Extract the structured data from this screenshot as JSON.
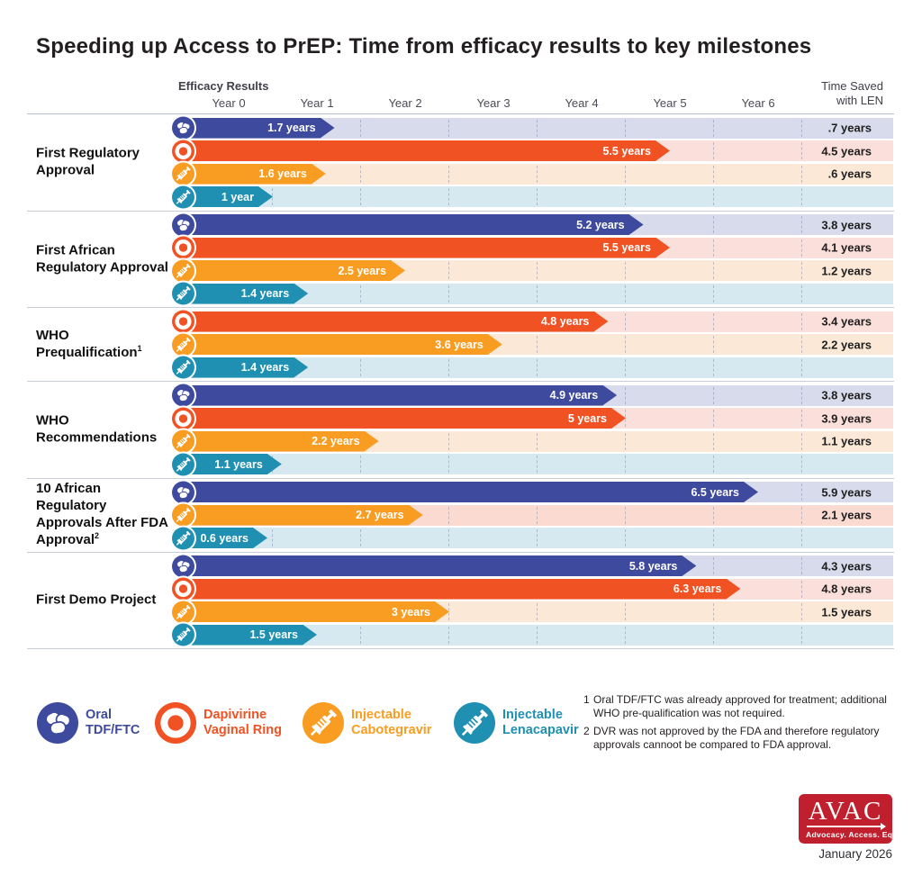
{
  "title": "Speeding up Access to PrEP: Time from efficacy results to key milestones",
  "axis": {
    "efficacy_label": "Efficacy Results",
    "years": [
      "Year 0",
      "Year 1",
      "Year 2",
      "Year 3",
      "Year 4",
      "Year 5",
      "Year 6"
    ],
    "time_saved_line1": "Time Saved",
    "time_saved_line2": "with LEN"
  },
  "drugs": {
    "tdf": {
      "name": "Oral TDF/FTC",
      "color": "#3E4A9D",
      "track": "#D8DBEC",
      "icon": "pills"
    },
    "dvr": {
      "name": "Dapivirine Vaginal Ring",
      "color": "#F05224",
      "track": "#FBDFDA",
      "icon": "ring"
    },
    "cab": {
      "name": "Injectable Cabotegravir",
      "color": "#F89D22",
      "track": "#FCE8D7",
      "icon": "syringe"
    },
    "len": {
      "name": "Injectable Lenacapavir",
      "color": "#1F90B2",
      "track": "#D7E9F0",
      "icon": "syringe"
    }
  },
  "chart_data": {
    "type": "bar",
    "orientation": "horizontal",
    "unit": "years",
    "x_range": [
      0,
      8
    ],
    "x_ticks": [
      "Year 0",
      "Year 1",
      "Year 2",
      "Year 3",
      "Year 4",
      "Year 5",
      "Year 6"
    ],
    "groups": [
      {
        "label": "First Regulatory Approval",
        "sup": "",
        "rows": [
          {
            "drug": "tdf",
            "value": 1.7,
            "value_label": "1.7 years",
            "time_saved": ".7 years"
          },
          {
            "drug": "dvr",
            "value": 5.5,
            "value_label": "5.5 years",
            "time_saved": "4.5 years"
          },
          {
            "drug": "cab",
            "value": 1.6,
            "value_label": "1.6 years",
            "time_saved": ".6 years"
          },
          {
            "drug": "len",
            "value": 1.0,
            "value_label": "1 year",
            "time_saved": ""
          }
        ]
      },
      {
        "label": "First African Regulatory Approval",
        "sup": "",
        "rows": [
          {
            "drug": "tdf",
            "value": 5.2,
            "value_label": "5.2 years",
            "time_saved": "3.8 years"
          },
          {
            "drug": "dvr",
            "value": 5.5,
            "value_label": "5.5 years",
            "time_saved": "4.1 years"
          },
          {
            "drug": "cab",
            "value": 2.5,
            "value_label": "2.5 years",
            "time_saved": "1.2 years"
          },
          {
            "drug": "len",
            "value": 1.4,
            "value_label": "1.4 years",
            "time_saved": ""
          }
        ]
      },
      {
        "label": "WHO Prequalification",
        "sup": "1",
        "rows": [
          {
            "drug": "dvr",
            "value": 4.8,
            "value_label": "4.8 years",
            "time_saved": "3.4 years"
          },
          {
            "drug": "cab",
            "value": 3.6,
            "value_label": "3.6 years",
            "time_saved": "2.2 years"
          },
          {
            "drug": "len",
            "value": 1.4,
            "value_label": "1.4 years",
            "time_saved": ""
          }
        ]
      },
      {
        "label": "WHO Recommendations",
        "sup": "",
        "rows": [
          {
            "drug": "tdf",
            "value": 4.9,
            "value_label": "4.9 years",
            "time_saved": "3.8 years"
          },
          {
            "drug": "dvr",
            "value": 5.0,
            "value_label": "5 years",
            "time_saved": "3.9 years"
          },
          {
            "drug": "cab",
            "value": 2.2,
            "value_label": "2.2 years",
            "time_saved": "1.1 years"
          },
          {
            "drug": "len",
            "value": 1.1,
            "value_label": "1.1 years",
            "time_saved": ""
          }
        ]
      },
      {
        "label": "10 African Regulatory Approvals After FDA Approval",
        "sup": "2",
        "rows": [
          {
            "drug": "tdf",
            "value": 6.5,
            "value_label": "6.5 years",
            "time_saved": "5.9 years"
          },
          {
            "drug": "cab",
            "value": 2.7,
            "value_label": "2.7 years",
            "time_saved": "2.1 years",
            "track_override": "#FADAD1"
          },
          {
            "drug": "len",
            "value": 0.6,
            "value_label": "0.6 years",
            "time_saved": ""
          }
        ]
      },
      {
        "label": "First Demo Project",
        "sup": "",
        "rows": [
          {
            "drug": "tdf",
            "value": 5.8,
            "value_label": "5.8 years",
            "time_saved": "4.3 years"
          },
          {
            "drug": "dvr",
            "value": 6.3,
            "value_label": "6.3 years",
            "time_saved": "4.8 years"
          },
          {
            "drug": "cab",
            "value": 3.0,
            "value_label": "3 years",
            "time_saved": "1.5 years"
          },
          {
            "drug": "len",
            "value": 1.5,
            "value_label": "1.5 years",
            "time_saved": ""
          }
        ]
      }
    ]
  },
  "legend": {
    "items": [
      {
        "drug": "tdf",
        "lines": [
          "Oral",
          "TDF/FTC"
        ]
      },
      {
        "drug": "dvr",
        "lines": [
          "Dapivirine",
          "Vaginal Ring"
        ]
      },
      {
        "drug": "cab",
        "lines": [
          "Injectable",
          "Cabotegravir"
        ]
      },
      {
        "drug": "len",
        "lines": [
          "Injectable",
          "Lenacapavir"
        ]
      }
    ]
  },
  "footnotes": [
    {
      "num": "1",
      "text": "Oral TDF/FTC was already approved for treatment; additional WHO pre-qualification was not required."
    },
    {
      "num": "2",
      "text": "DVR was not approved by the FDA and therefore regulatory approvals cannoot be compared to FDA approval."
    }
  ],
  "logo": {
    "name": "AVAC",
    "tagline": "Advocacy. Access. Equity.",
    "color": "#C0202E"
  },
  "date": "January 2026"
}
